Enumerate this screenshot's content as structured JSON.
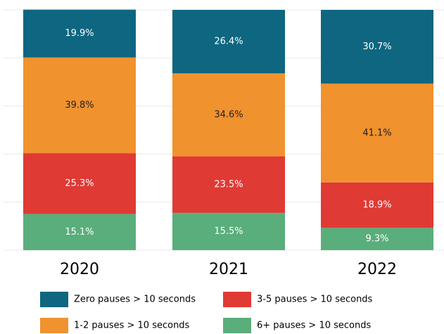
{
  "chart_data": {
    "type": "stacked_bar",
    "categories": [
      "2020",
      "2021",
      "2022"
    ],
    "series": [
      {
        "name": "Zero pauses > 10 seconds",
        "color": "#0e6680",
        "values": [
          19.9,
          26.4,
          30.7
        ],
        "value_labels": [
          "19.9%",
          "26.4%",
          "30.7%"
        ]
      },
      {
        "name": "1-2 pauses > 10 seconds",
        "color": "#f0922e",
        "values": [
          39.8,
          34.6,
          41.1
        ],
        "value_labels": [
          "39.8%",
          "34.6%",
          "41.1%"
        ]
      },
      {
        "name": "3-5 pauses > 10 seconds",
        "color": "#e03a35",
        "values": [
          25.3,
          23.5,
          18.9
        ],
        "value_labels": [
          "25.3%",
          "23.5%",
          "18.9%"
        ]
      },
      {
        "name": "6+ pauses > 10 seconds",
        "color": "#5aae7b",
        "values": [
          15.1,
          15.5,
          9.3
        ],
        "value_labels": [
          "15.1%",
          "15.5%",
          "9.3%"
        ]
      }
    ],
    "ylim": [
      0,
      100
    ],
    "yticks": [
      0,
      20,
      40,
      60,
      80,
      100
    ],
    "grid": true
  }
}
